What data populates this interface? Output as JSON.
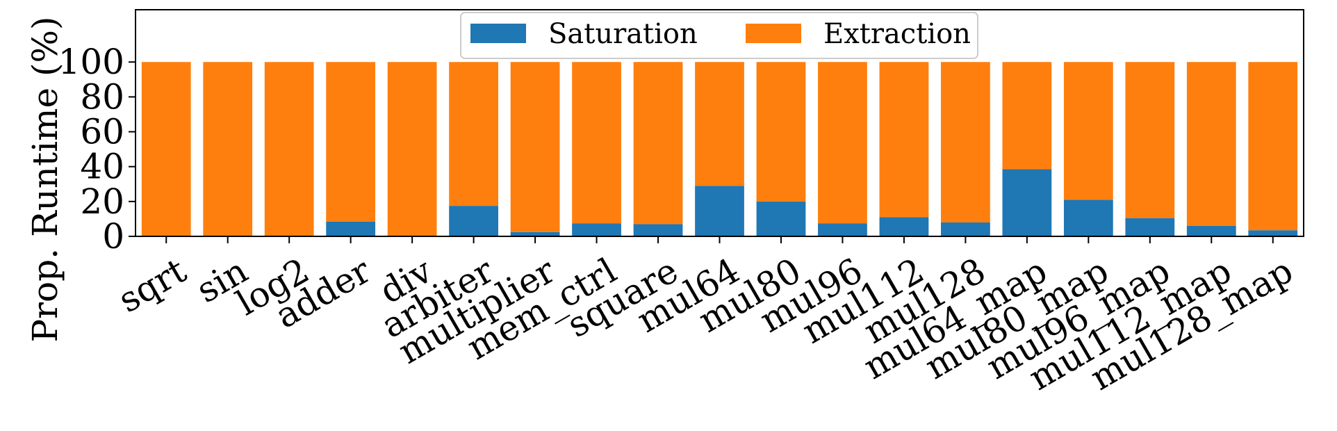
{
  "chart_data": {
    "type": "bar",
    "stacked": true,
    "ylabel": "Prop. Runtime (%)",
    "xlabel": "",
    "ylim": [
      0,
      130
    ],
    "yticks": [
      0,
      20,
      40,
      60,
      80,
      100
    ],
    "legend_position": "top-center",
    "categories": [
      "sqrt",
      "sin",
      "log2",
      "adder",
      "div",
      "arbiter",
      "multiplier",
      "mem_ctrl",
      "square",
      "mul64",
      "mul80",
      "mul96",
      "mul112",
      "mul128",
      "mul64_map",
      "mul80_map",
      "mul96_map",
      "mul112_map",
      "mul128_map"
    ],
    "series": [
      {
        "name": "Saturation",
        "color": "#1f77b4",
        "values": [
          0,
          0,
          0,
          8.5,
          0,
          17.5,
          2.5,
          7.5,
          7,
          29,
          20,
          7.5,
          11,
          8,
          38.5,
          21,
          10.5,
          6,
          3.5
        ]
      },
      {
        "name": "Extraction",
        "color": "#ff7f0e",
        "values": [
          100,
          100,
          100,
          91.5,
          100,
          82.5,
          97.5,
          92.5,
          93,
          71,
          80,
          92.5,
          89,
          92,
          61.5,
          79,
          89.5,
          94,
          96.5
        ]
      }
    ]
  }
}
